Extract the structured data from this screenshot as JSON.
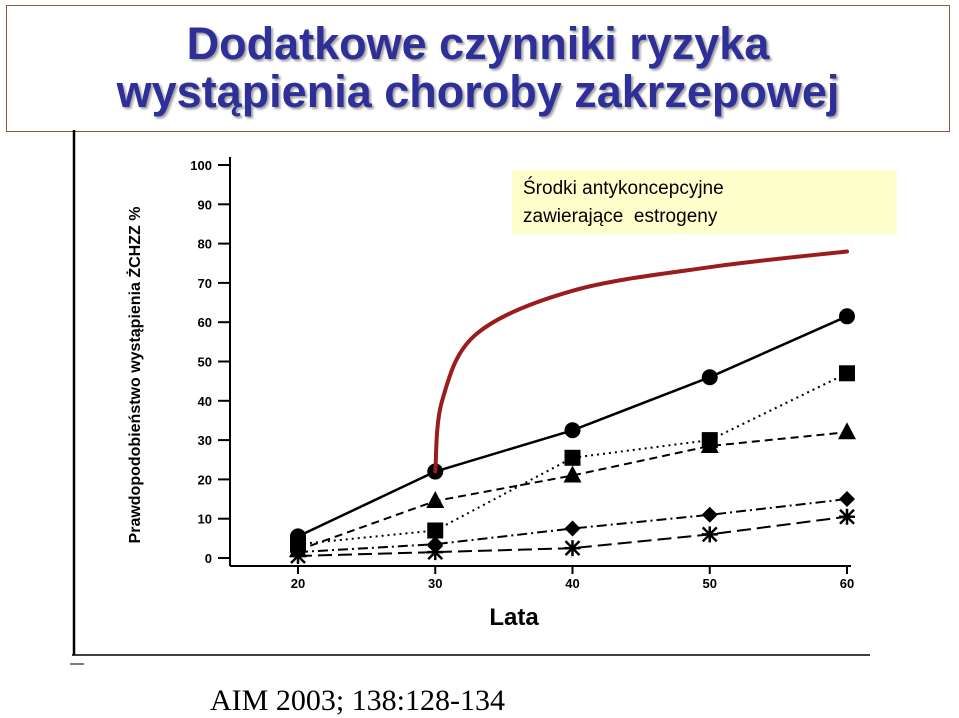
{
  "slide": {
    "title_line1": "Dodatkowe czynniki ryzyka",
    "title_line2": "wystąpienia choroby zakrzepowej",
    "citation": "AIM 2003; 138:128-134",
    "title_color": "#2f2f9a",
    "annotation_fill": "#ffffcc",
    "highlight_curve_color": "#9b1c1c"
  },
  "chart_data": {
    "type": "line",
    "xlabel": "Lata",
    "ylabel": "Prawdopodobieństwo wystąpienia ŻCHZZ %",
    "x_ticks": [
      20,
      30,
      40,
      50,
      60
    ],
    "y_ticks": [
      0,
      10,
      20,
      30,
      40,
      50,
      60,
      70,
      80,
      90,
      100
    ],
    "xlim": [
      20,
      60
    ],
    "ylim": [
      0,
      100
    ],
    "grid": false,
    "annotation": {
      "line1": "Środki antykoncepcyjne",
      "line2": "zawierające  estrogeny"
    },
    "highlight_curve": {
      "x": [
        30,
        30.5,
        33,
        40,
        50,
        60
      ],
      "y": [
        22,
        40,
        57,
        68,
        74,
        78
      ]
    },
    "series": [
      {
        "marker": "circle",
        "style": "solid",
        "x": [
          20,
          30,
          40,
          50,
          60
        ],
        "y": [
          5.5,
          22,
          32.5,
          46,
          61.5
        ]
      },
      {
        "marker": "square",
        "style": "dotted",
        "x": [
          20,
          30,
          40,
          50,
          60
        ],
        "y": [
          3.5,
          7,
          25.5,
          30,
          47
        ]
      },
      {
        "marker": "triangle",
        "style": "dashed",
        "x": [
          20,
          30,
          40,
          50,
          60
        ],
        "y": [
          2,
          14.5,
          21,
          28.5,
          32
        ]
      },
      {
        "marker": "diamond",
        "style": "dashdot",
        "x": [
          20,
          30,
          40,
          50,
          60
        ],
        "y": [
          1.5,
          3.5,
          7.5,
          11,
          15
        ]
      },
      {
        "marker": "star",
        "style": "longdash",
        "x": [
          20,
          30,
          40,
          50,
          60
        ],
        "y": [
          0.5,
          1.5,
          2.5,
          6,
          10.5
        ]
      }
    ]
  }
}
